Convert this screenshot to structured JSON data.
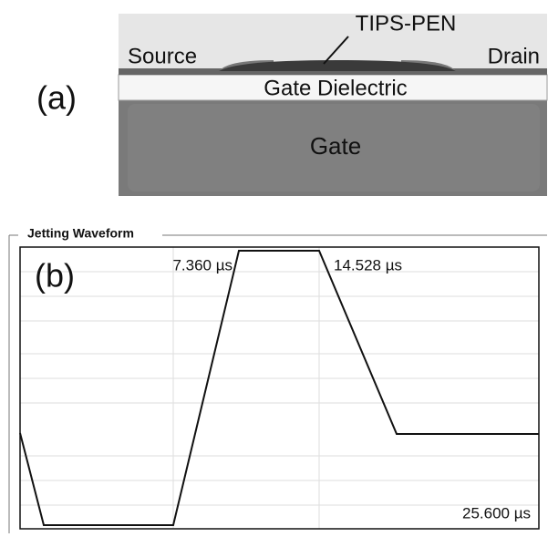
{
  "panel_a": {
    "label": "(a)",
    "source": "Source",
    "drain": "Drain",
    "semiconductor": "TIPS-PEN",
    "dielectric": "Gate Dielectric",
    "gate": "Gate"
  },
  "panel_b": {
    "title": "Jetting Waveform",
    "label": "(b)",
    "time_labels": [
      "7.360 µs",
      "14.528 µs",
      "25.600 µs"
    ]
  }
}
